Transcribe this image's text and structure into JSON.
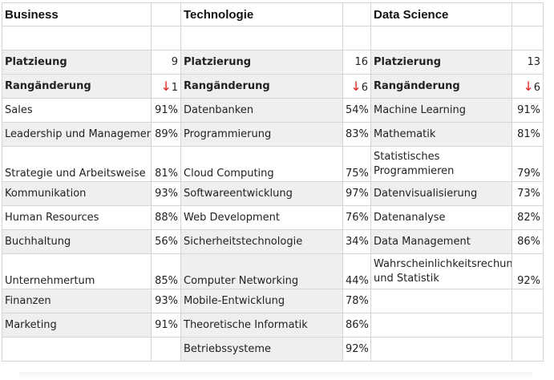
{
  "columns": [
    {
      "title": "Business",
      "rank_label": "Platzieung",
      "rank_value": "9",
      "change_label": "Rangänderung",
      "change_arrow": "↓",
      "change_value": "1",
      "skills": [
        {
          "name": "Sales",
          "pct": "91%"
        },
        {
          "name": "Leadership und Management",
          "pct": "89%"
        },
        {
          "name": "Strategie und Arbeitsweise",
          "pct": "81%"
        },
        {
          "name": "Kommunikation",
          "pct": "93%"
        },
        {
          "name": "Human Resources",
          "pct": "88%"
        },
        {
          "name": "Buchhaltung",
          "pct": "56%"
        },
        {
          "name": "Unternehmertum",
          "pct": "85%"
        },
        {
          "name": "Finanzen",
          "pct": "93%"
        },
        {
          "name": "Marketing",
          "pct": "91%"
        }
      ]
    },
    {
      "title": "Technologie",
      "rank_label": "Platzierung",
      "rank_value": "16",
      "change_label": "Rangänderung",
      "change_arrow": "↓",
      "change_value": "6",
      "skills": [
        {
          "name": "Datenbanken",
          "pct": "54%"
        },
        {
          "name": "Programmierung",
          "pct": "83%"
        },
        {
          "name": "Cloud Computing",
          "pct": "75%"
        },
        {
          "name": "Softwareentwicklung",
          "pct": "97%"
        },
        {
          "name": "Web Development",
          "pct": "76%"
        },
        {
          "name": "Sicherheitstechnologie",
          "pct": "34%"
        },
        {
          "name": "Computer Networking",
          "pct": "44%"
        },
        {
          "name": "Mobile-Entwicklung",
          "pct": "78%"
        },
        {
          "name": "Theoretische Informatik",
          "pct": "86%"
        },
        {
          "name": "Betriebssysteme",
          "pct": "92%"
        }
      ]
    },
    {
      "title": "Data Science",
      "rank_label": "Platzierung",
      "rank_value": "13",
      "change_label": "Rangänderung",
      "change_arrow": "↓",
      "change_value": "6",
      "skills": [
        {
          "name": "Machine Learning",
          "pct": "91%"
        },
        {
          "name": "Mathematik",
          "pct": "81%"
        },
        {
          "name": "Statistisches Programmieren",
          "pct": "79%"
        },
        {
          "name": "Datenvisualisierung",
          "pct": "73%"
        },
        {
          "name": "Datenanalyse",
          "pct": "82%"
        },
        {
          "name": "Data Management",
          "pct": "86%"
        },
        {
          "name": "Wahrscheinlichkeitsrechung und Statistik",
          "pct": "92%"
        }
      ]
    }
  ]
}
